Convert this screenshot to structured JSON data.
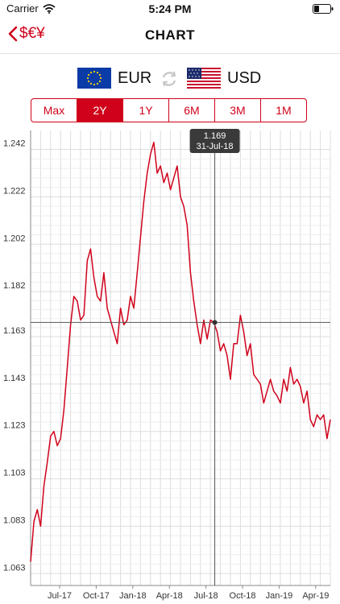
{
  "status": {
    "carrier": "Carrier",
    "time": "5:24 PM"
  },
  "nav": {
    "back_label": "$€¥",
    "title": "CHART"
  },
  "pair": {
    "base": {
      "code": "EUR",
      "flag": "eu-flag"
    },
    "quote": {
      "code": "USD",
      "flag": "us-flag"
    }
  },
  "ranges": {
    "items": [
      "Max",
      "2Y",
      "1Y",
      "6M",
      "3M",
      "1M"
    ],
    "selected": "2Y"
  },
  "colors": {
    "accent": "#d0021b",
    "grid": "#dddddd",
    "crosshair": "#555555"
  },
  "tooltip": {
    "value": "1.169",
    "date": "31-Jul-18"
  },
  "chart_data": {
    "type": "line",
    "xlabels": [
      "Jul-17",
      "Oct-17",
      "Jan-18",
      "Apr-18",
      "Jul-18",
      "Oct-18",
      "Jan-19",
      "Apr-19"
    ],
    "yticks": [
      "1.242",
      "1.222",
      "1.202",
      "1.182",
      "1.163",
      "1.143",
      "1.123",
      "1.103",
      "1.083",
      "1.063"
    ],
    "ylim": [
      1.058,
      1.25
    ],
    "xlim": [
      0,
      90
    ],
    "highlight": {
      "x": 55.3,
      "y": 1.169
    },
    "series": [
      {
        "x": [
          0,
          1,
          2,
          3,
          4,
          5,
          6,
          7,
          8,
          9,
          10,
          11,
          12,
          13,
          14,
          15,
          16,
          17,
          18,
          19,
          20,
          21,
          22,
          23,
          24,
          25,
          26,
          27,
          28,
          29,
          30,
          31,
          32,
          33,
          34,
          35,
          36,
          37,
          38,
          39,
          40,
          41,
          42,
          43,
          44,
          45,
          46,
          47,
          48,
          49,
          50,
          51,
          52,
          53,
          54,
          55,
          56,
          57,
          58,
          59,
          60,
          61,
          62,
          63,
          64,
          65,
          66,
          67,
          68,
          69,
          70,
          71,
          72,
          73,
          74,
          75,
          76,
          77,
          78,
          79,
          80,
          81,
          82,
          83,
          84,
          85,
          86,
          87,
          88,
          89,
          90
        ],
        "values": [
          1.068,
          1.085,
          1.09,
          1.083,
          1.1,
          1.11,
          1.121,
          1.123,
          1.117,
          1.12,
          1.132,
          1.15,
          1.168,
          1.18,
          1.178,
          1.17,
          1.172,
          1.195,
          1.2,
          1.188,
          1.18,
          1.178,
          1.19,
          1.175,
          1.17,
          1.165,
          1.16,
          1.175,
          1.168,
          1.17,
          1.18,
          1.175,
          1.19,
          1.205,
          1.22,
          1.232,
          1.24,
          1.245,
          1.232,
          1.235,
          1.228,
          1.232,
          1.225,
          1.23,
          1.235,
          1.222,
          1.218,
          1.21,
          1.19,
          1.178,
          1.168,
          1.16,
          1.17,
          1.162,
          1.17,
          1.169,
          1.165,
          1.157,
          1.16,
          1.155,
          1.145,
          1.16,
          1.16,
          1.172,
          1.165,
          1.155,
          1.16,
          1.147,
          1.145,
          1.143,
          1.135,
          1.14,
          1.145,
          1.14,
          1.138,
          1.135,
          1.145,
          1.14,
          1.15,
          1.143,
          1.145,
          1.142,
          1.135,
          1.14,
          1.128,
          1.125,
          1.13,
          1.128,
          1.13,
          1.12,
          1.128
        ]
      }
    ]
  }
}
